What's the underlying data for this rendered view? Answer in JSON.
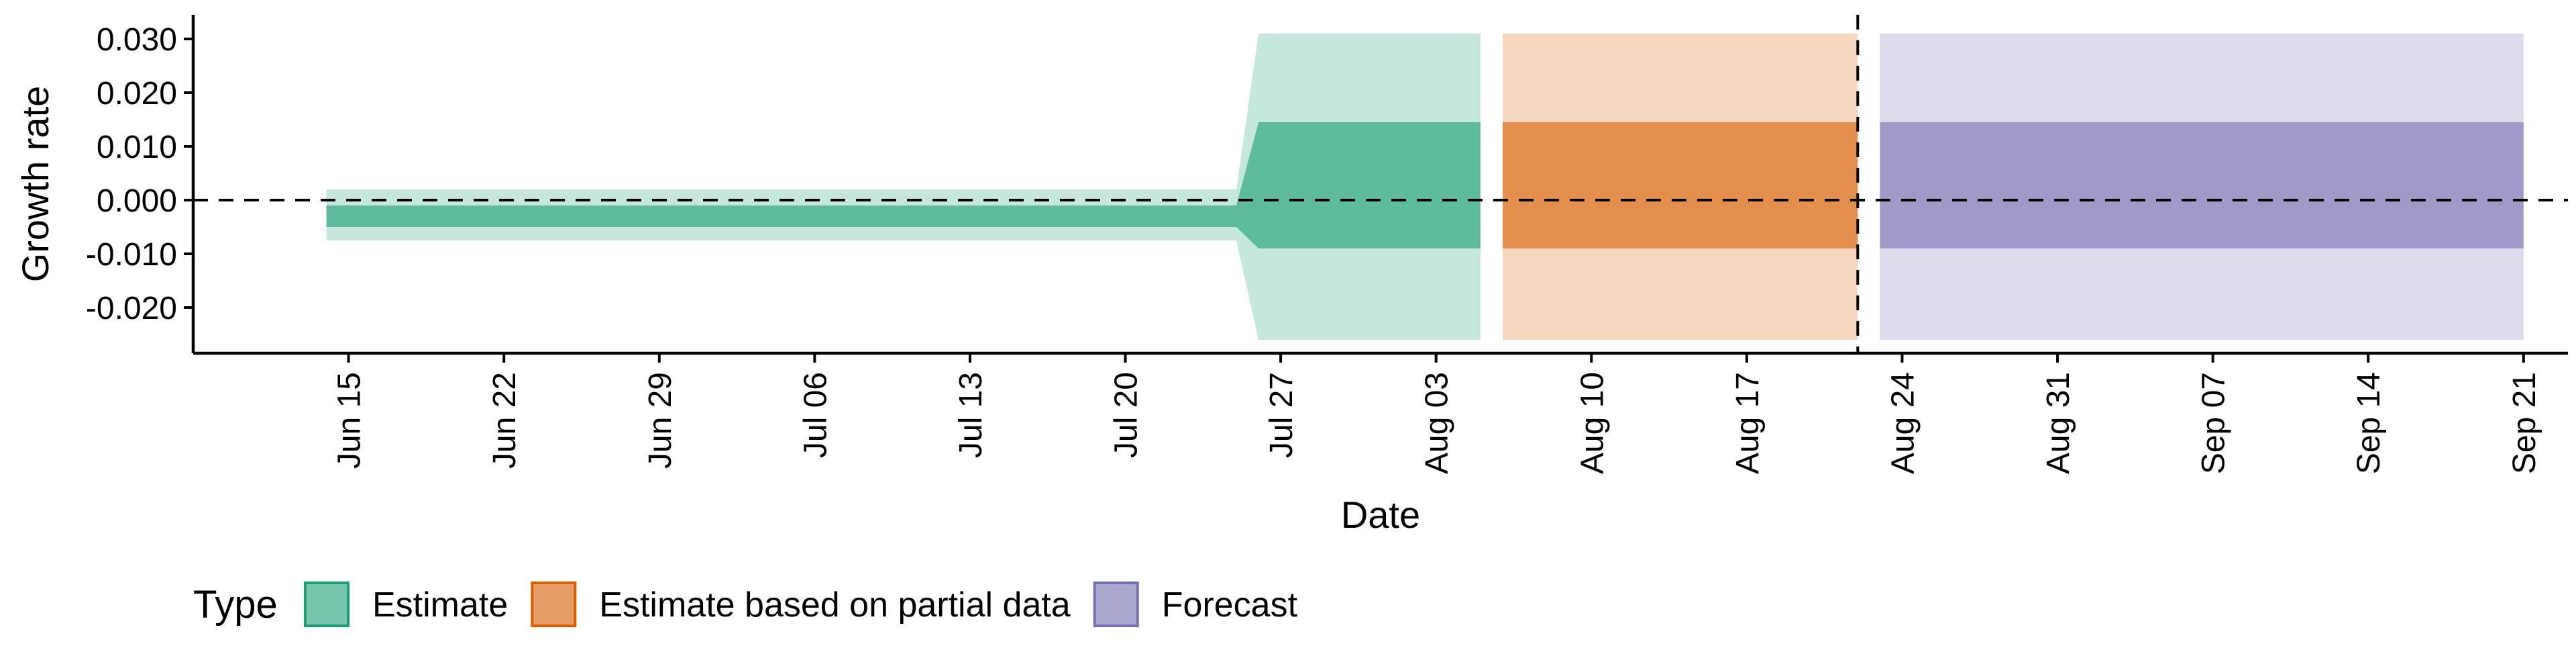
{
  "chart_data": {
    "type": "area",
    "xlabel": "Date",
    "ylabel": "Growth rate",
    "y_ticks": [
      -0.02,
      -0.01,
      0.0,
      0.01,
      0.02,
      0.03
    ],
    "y_tick_labels": [
      "-0.020",
      "-0.010",
      "0.000",
      "0.010",
      "0.020",
      "0.030"
    ],
    "ylim": [
      -0.0285,
      0.0345
    ],
    "xlim": [
      "2020-06-08",
      "2020-09-23"
    ],
    "x_ticks": [
      "2020-06-15",
      "2020-06-22",
      "2020-06-29",
      "2020-07-06",
      "2020-07-13",
      "2020-07-20",
      "2020-07-27",
      "2020-08-03",
      "2020-08-10",
      "2020-08-17",
      "2020-08-24",
      "2020-08-31",
      "2020-09-07",
      "2020-09-14",
      "2020-09-21"
    ],
    "x_tick_labels": [
      "Jun 15",
      "Jun 22",
      "Jun 29",
      "Jul 06",
      "Jul 13",
      "Jul 20",
      "Jul 27",
      "Aug 03",
      "Aug 10",
      "Aug 17",
      "Aug 24",
      "Aug 31",
      "Sep 07",
      "Sep 14",
      "Sep 21"
    ],
    "hline_y": 0.0,
    "vline_date": "2020-08-22",
    "legend": {
      "title": "Type",
      "position": "bottom-left",
      "entries": [
        "Estimate",
        "Estimate based on partial data",
        "Forecast"
      ]
    },
    "series": [
      {
        "name": "Estimate",
        "fill": "#1b9e77",
        "x": [
          "2020-06-14",
          "2020-07-25",
          "2020-07-26",
          "2020-08-05"
        ],
        "outer_lower": [
          -0.0075,
          -0.0075,
          -0.026,
          -0.026
        ],
        "outer_upper": [
          0.002,
          0.002,
          0.031,
          0.031
        ],
        "inner_lower": [
          -0.005,
          -0.005,
          -0.009,
          -0.009
        ],
        "inner_upper": [
          -0.001,
          -0.001,
          0.0145,
          0.0145
        ]
      },
      {
        "name": "Estimate based on partial data",
        "fill": "#d95f02",
        "x": [
          "2020-08-06",
          "2020-08-22"
        ],
        "outer_lower": [
          -0.026,
          -0.026
        ],
        "outer_upper": [
          0.031,
          0.031
        ],
        "inner_lower": [
          -0.009,
          -0.009
        ],
        "inner_upper": [
          0.0145,
          0.0145
        ]
      },
      {
        "name": "Forecast",
        "fill": "#7570b3",
        "x": [
          "2020-08-23",
          "2020-09-21"
        ],
        "outer_lower": [
          -0.026,
          -0.026
        ],
        "outer_upper": [
          0.031,
          0.031
        ],
        "inner_lower": [
          -0.009,
          -0.009
        ],
        "inner_upper": [
          0.0145,
          0.0145
        ]
      }
    ]
  }
}
